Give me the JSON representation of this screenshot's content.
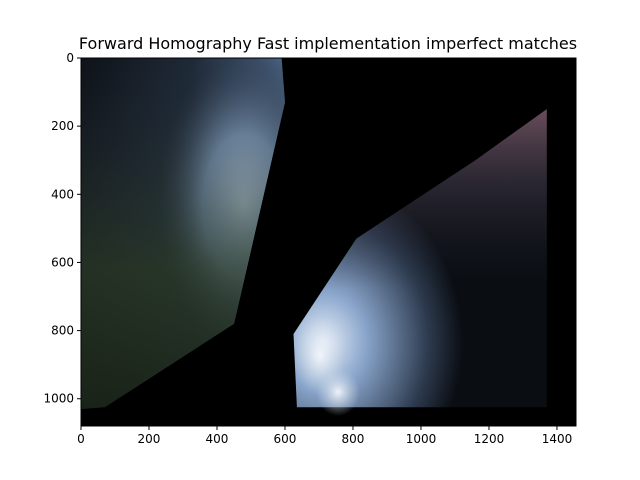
{
  "chart_data": {
    "type": "image",
    "title": "Forward Homography Fast implementation imperfect matches",
    "xlabel": "",
    "ylabel": "",
    "xlim": [
      0,
      1456
    ],
    "ylim": [
      1080,
      0
    ],
    "x_ticks": [
      0,
      200,
      400,
      600,
      800,
      1000,
      1200,
      1400
    ],
    "x_tick_labels": [
      "0",
      "200",
      "400",
      "600",
      "800",
      "1000",
      "1200",
      "1400"
    ],
    "y_ticks": [
      0,
      200,
      400,
      600,
      800,
      1000
    ],
    "y_tick_labels": [
      "0",
      "200",
      "400",
      "600",
      "800",
      "1000"
    ],
    "grid": false,
    "background_color": "#000000",
    "image_regions": [
      {
        "name": "left-warped-region",
        "polygon": [
          [
            0,
            0
          ],
          [
            590,
            0
          ],
          [
            600,
            130
          ],
          [
            450,
            780
          ],
          [
            70,
            1025
          ],
          [
            0,
            1030
          ]
        ],
        "colors": {
          "sky": "#9fb9d8",
          "mountain": "#3d5068",
          "forest": "#2b3a26",
          "dark": "#0d1116"
        }
      },
      {
        "name": "right-warped-region",
        "polygon": [
          [
            1370,
            150
          ],
          [
            1370,
            1025
          ],
          [
            635,
            1025
          ],
          [
            625,
            810
          ],
          [
            810,
            530
          ],
          [
            1160,
            300
          ]
        ],
        "colors": {
          "sky": "#8aa6cc",
          "cloud": "#e8eef5",
          "meadow": "#6a5060",
          "dark": "#0a0d12"
        }
      }
    ]
  }
}
